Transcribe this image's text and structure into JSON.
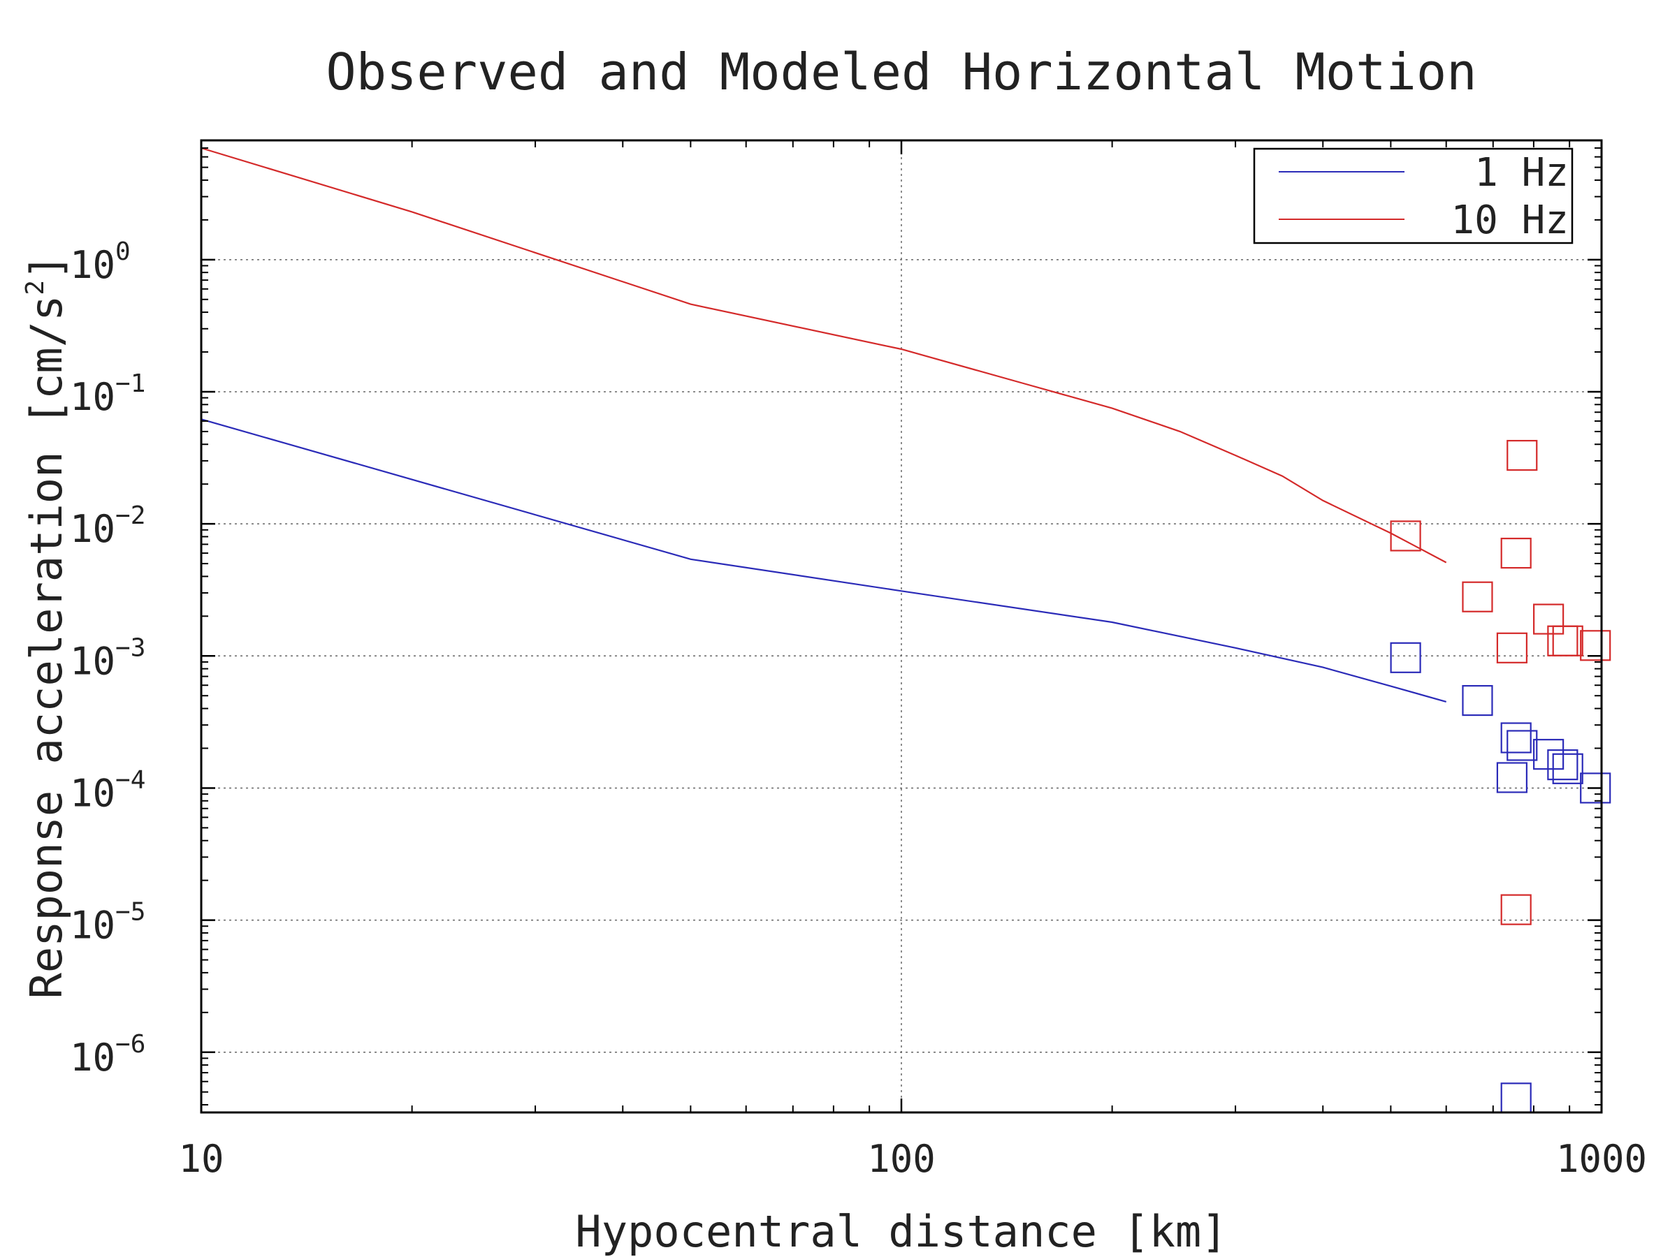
{
  "chart_data": {
    "type": "line",
    "title": "Observed and Modeled Horizontal Motion",
    "xlabel": "Hypocentral distance [km]",
    "ylabel": "Response acceleration [cm/s",
    "ylabel_superscript": "2",
    "ylabel_suffix": "]",
    "x_scale": "log",
    "y_scale": "log",
    "xlim": [
      10,
      1000
    ],
    "ylim": [
      3.5e-07,
      8
    ],
    "grid": true,
    "legend_placement": "top-right",
    "x_ticks": [
      {
        "value": 10,
        "label": "10"
      },
      {
        "value": 100,
        "label": "100"
      },
      {
        "value": 1000,
        "label": "1000"
      }
    ],
    "y_ticks": [
      {
        "value": 1,
        "base": "10",
        "exp": "0"
      },
      {
        "value": 0.1,
        "base": "10",
        "exp": "−1"
      },
      {
        "value": 0.01,
        "base": "10",
        "exp": "−2"
      },
      {
        "value": 0.001,
        "base": "10",
        "exp": "−3"
      },
      {
        "value": 0.0001,
        "base": "10",
        "exp": "−4"
      },
      {
        "value": 1e-05,
        "base": "10",
        "exp": "−5"
      },
      {
        "value": 1e-06,
        "base": "10",
        "exp": "−6"
      }
    ],
    "series": [
      {
        "name": "1 Hz",
        "color": "#2b2bb8",
        "x": [
          10,
          50,
          100,
          200,
          300,
          400,
          500,
          600
        ],
        "y": [
          0.062,
          0.0054,
          0.0031,
          0.0018,
          0.00115,
          0.00082,
          0.00059,
          0.00045
        ]
      },
      {
        "name": "10 Hz",
        "color": "#d42a2a",
        "x": [
          10,
          20,
          50,
          100,
          150,
          200,
          250,
          300,
          350,
          400,
          500,
          600
        ],
        "y": [
          7.0,
          2.3,
          0.46,
          0.21,
          0.115,
          0.075,
          0.05,
          0.033,
          0.023,
          0.015,
          0.0085,
          0.0051
        ]
      }
    ],
    "observed": [
      {
        "color": "#2b2bb8",
        "points": [
          {
            "x": 525,
            "y": 0.00097
          },
          {
            "x": 665,
            "y": 0.00046
          },
          {
            "x": 755,
            "y": 0.00024
          },
          {
            "x": 770,
            "y": 0.00021
          },
          {
            "x": 840,
            "y": 0.00018
          },
          {
            "x": 880,
            "y": 0.00015
          },
          {
            "x": 895,
            "y": 0.00014
          },
          {
            "x": 980,
            "y": 0.0001
          },
          {
            "x": 745,
            "y": 0.00012
          },
          {
            "x": 755,
            "y": 4.5e-07
          }
        ]
      },
      {
        "color": "#d42a2a",
        "points": [
          {
            "x": 525,
            "y": 0.0081
          },
          {
            "x": 665,
            "y": 0.0028
          },
          {
            "x": 770,
            "y": 0.033
          },
          {
            "x": 755,
            "y": 0.006
          },
          {
            "x": 840,
            "y": 0.0019
          },
          {
            "x": 880,
            "y": 0.0013
          },
          {
            "x": 895,
            "y": 0.0013
          },
          {
            "x": 980,
            "y": 0.0012
          },
          {
            "x": 745,
            "y": 0.00115
          },
          {
            "x": 755,
            "y": 1.2e-05
          }
        ]
      }
    ]
  }
}
